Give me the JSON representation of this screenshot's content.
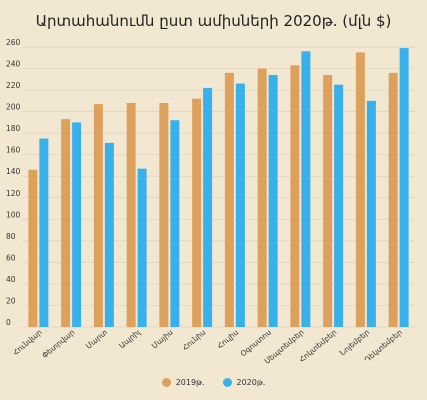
{
  "chart_data": {
    "type": "bar",
    "title": "Արտահանումն ըստ ամիսների 2020թ. (մլն $)",
    "xlabel": "",
    "ylabel": "",
    "ylim": [
      0,
      260
    ],
    "yticks": [
      0,
      20,
      40,
      60,
      80,
      100,
      120,
      140,
      160,
      180,
      200,
      220,
      240,
      260
    ],
    "grid": true,
    "legend_position": "bottom",
    "categories": [
      "Հունվար",
      "Փետրվար",
      "Մարտ",
      "Ապրիլ",
      "Մայիս",
      "Հունիս",
      "Հուլիս",
      "Օգոստոս",
      "Սեպտեմբեր",
      "Հոկտեմբեր",
      "Նոյեմբեր",
      "Դեկտեմբեր"
    ],
    "series": [
      {
        "name": "2019թ.",
        "color": "#dda15e",
        "values": [
          146,
          193,
          207,
          208,
          208,
          212,
          236,
          240,
          243,
          234,
          255,
          236
        ]
      },
      {
        "name": "2020թ.",
        "color": "#38b0ea",
        "values": [
          175,
          190,
          171,
          147,
          192,
          222,
          226,
          234,
          256,
          225,
          210,
          259
        ]
      }
    ]
  }
}
